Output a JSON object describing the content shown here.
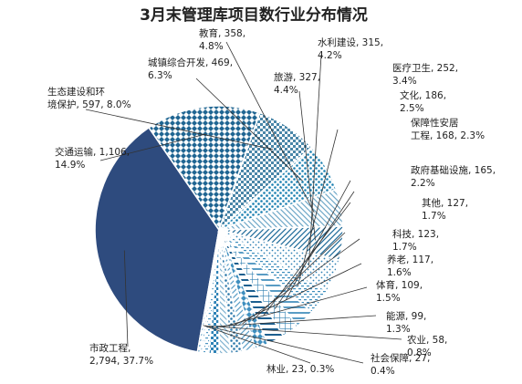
{
  "chart_data": {
    "type": "pie",
    "title": "3月末管理库项目数行业分布情况",
    "slices": [
      {
        "name": "市政工程",
        "value": 2794,
        "value_label": "2,794",
        "percent_label": "37.7%",
        "color": "#2e4b7e",
        "pattern": "solid"
      },
      {
        "name": "交通运输",
        "value": 1106,
        "value_label": "1,106",
        "percent_label": "14.9%",
        "color": "#1f6592",
        "pattern": "diamond"
      },
      {
        "name": "生态建设和环境保护",
        "value": 597,
        "value_label": "597",
        "percent_label": "8.0%",
        "color": "#4a86a8",
        "pattern": "checker"
      },
      {
        "name": "城镇综合开发",
        "value": 469,
        "value_label": "469",
        "percent_label": "6.3%",
        "color": "#1a7fb0",
        "pattern": "dots"
      },
      {
        "name": "教育",
        "value": 358,
        "value_label": "358",
        "percent_label": "4.8%",
        "color": "#6fa8c8",
        "pattern": "diagonal-down"
      },
      {
        "name": "旅游",
        "value": 327,
        "value_label": "327",
        "percent_label": "4.4%",
        "color": "#1d6a99",
        "pattern": "diagonal-up"
      },
      {
        "name": "水利建设",
        "value": 315,
        "value_label": "315",
        "percent_label": "4.2%",
        "color": "#2c7fb3",
        "pattern": "small-dots"
      },
      {
        "name": "医疗卫生",
        "value": 252,
        "value_label": "252",
        "percent_label": "3.4%",
        "color": "#3c8dbc",
        "pattern": "dashes"
      },
      {
        "name": "文化",
        "value": 186,
        "value_label": "186",
        "percent_label": "2.5%",
        "color": "#5a9cc4",
        "pattern": "horizontal"
      },
      {
        "name": "保障性安居工程",
        "value": 168,
        "value_label": "168",
        "percent_label": "2.3%",
        "color": "#2f7fb0",
        "pattern": "grid"
      },
      {
        "name": "政府基础设施",
        "value": 165,
        "value_label": "165",
        "percent_label": "2.2%",
        "color": "#1c5f8f",
        "pattern": "horizontal"
      },
      {
        "name": "其他",
        "value": 127,
        "value_label": "127",
        "percent_label": "1.7%",
        "color": "#3f8fbf",
        "pattern": "diamond"
      },
      {
        "name": "科技",
        "value": 123,
        "value_label": "123",
        "percent_label": "1.7%",
        "color": "#5b9ec6",
        "pattern": "diagonal-up"
      },
      {
        "name": "养老",
        "value": 117,
        "value_label": "117",
        "percent_label": "1.6%",
        "color": "#2a77aa",
        "pattern": "dots"
      },
      {
        "name": "体育",
        "value": 109,
        "value_label": "109",
        "percent_label": "1.5%",
        "color": "#7fb2d0",
        "pattern": "diagonal-down"
      },
      {
        "name": "能源",
        "value": 99,
        "value_label": "99",
        "percent_label": "1.3%",
        "color": "#2e82b6",
        "pattern": "checker"
      },
      {
        "name": "农业",
        "value": 58,
        "value_label": "58",
        "percent_label": "0.8%",
        "color": "#4d95c1",
        "pattern": "dashes"
      },
      {
        "name": "社会保障",
        "value": 27,
        "value_label": "27",
        "percent_label": "0.4%",
        "color": "#6aa6cc",
        "pattern": "small-dots"
      },
      {
        "name": "林业",
        "value": 23,
        "value_label": "23",
        "percent_label": "0.3%",
        "color": "#3a86b8",
        "pattern": "horizontal"
      }
    ],
    "grid": false,
    "legend": "none"
  }
}
